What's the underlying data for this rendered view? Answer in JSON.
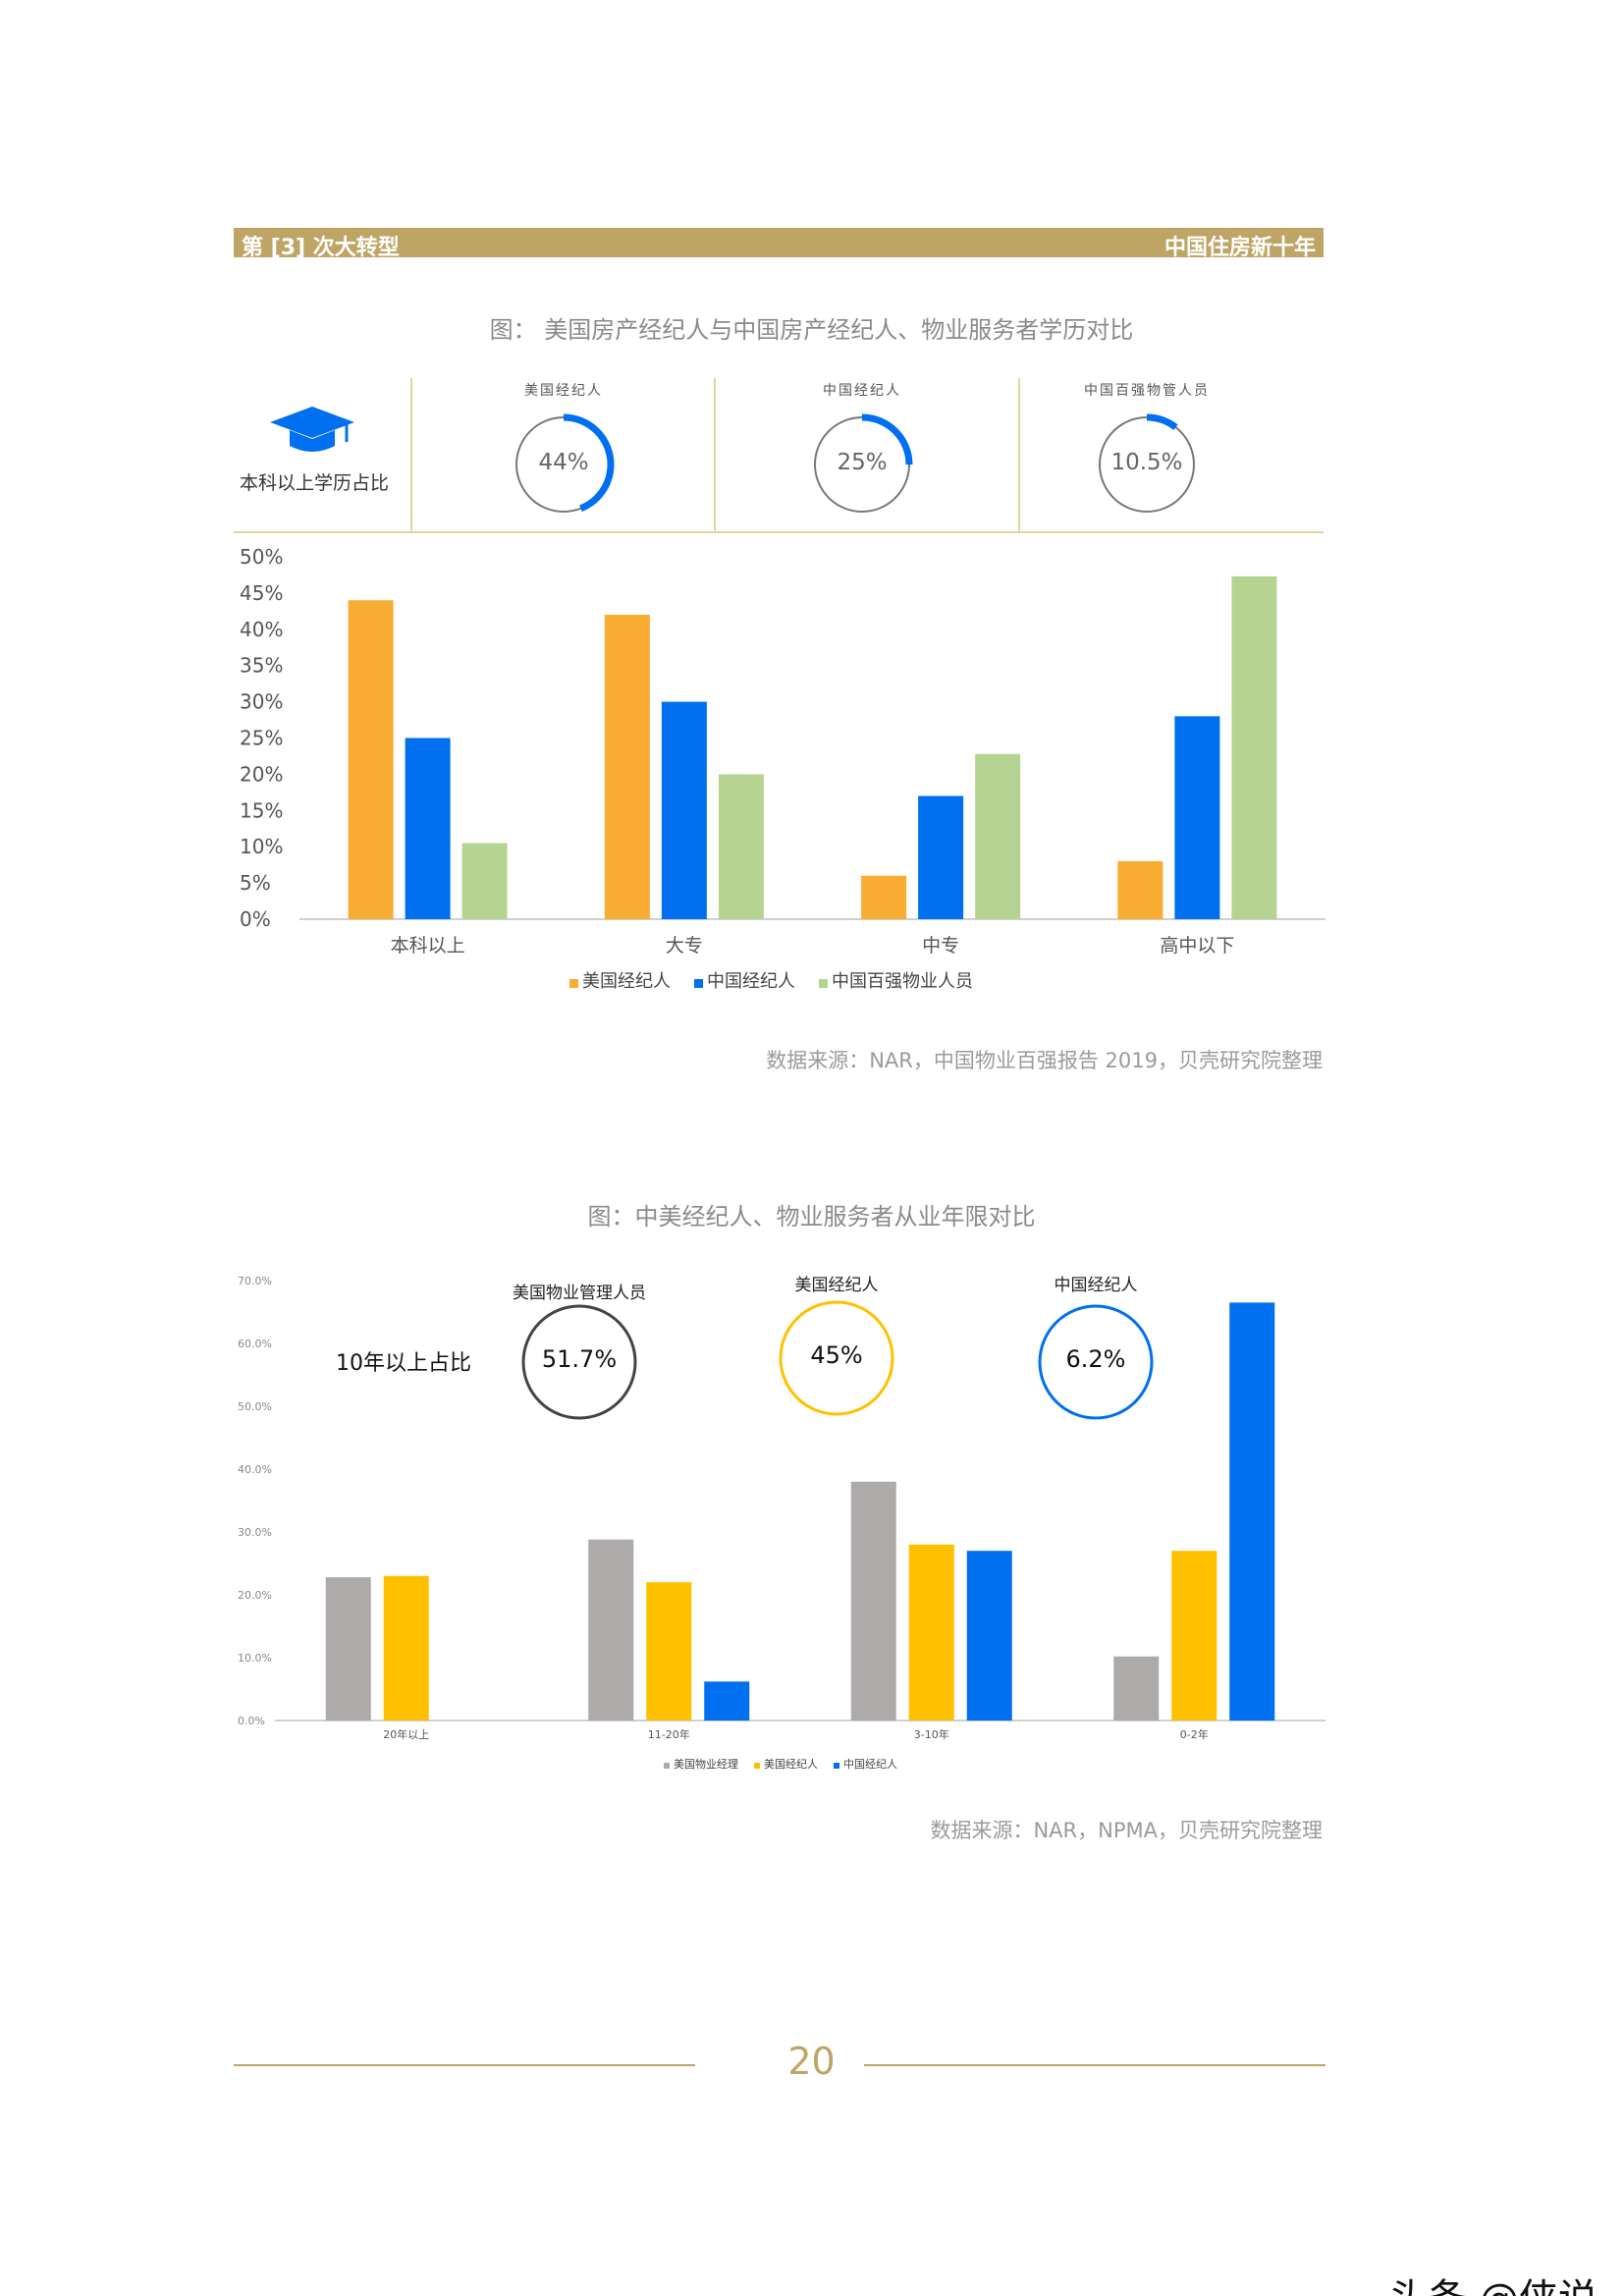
{
  "header": {
    "left": "第 [3] 次大转型",
    "right": "中国住房新十年"
  },
  "section1": {
    "title": "图： 美国房产经纪人与中国房产经纪人、物业服务者学历对比",
    "cap_label": "本科以上学历占比",
    "kpis": [
      {
        "label": "美国经纪人",
        "value": "44%",
        "fraction": 0.44
      },
      {
        "label": "中国经纪人",
        "value": "25%",
        "fraction": 0.25
      },
      {
        "label": "中国百强物管人员",
        "value": "10.5%",
        "fraction": 0.105
      }
    ],
    "source": "数据来源：NAR，中国物业百强报告 2019，贝壳研究院整理"
  },
  "section2": {
    "title": "图：中美经纪人、物业服务者从业年限对比",
    "big_label": "10年以上占比",
    "kpis": [
      {
        "label": "美国物业管理人员",
        "value": "51.7%",
        "color": "#444444"
      },
      {
        "label": "美国经纪人",
        "value": "45%",
        "color": "#ffc000"
      },
      {
        "label": "中国经纪人",
        "value": "6.2%",
        "color": "#0070f0"
      }
    ],
    "source": "数据来源：NAR，NPMA，贝壳研究院整理"
  },
  "chart_data": [
    {
      "type": "bar",
      "categories": [
        "本科以上",
        "大专",
        "中专",
        "高中以下"
      ],
      "series": [
        {
          "name": "美国经纪人",
          "values": [
            44,
            42,
            6,
            8
          ],
          "color": "#f9ac32"
        },
        {
          "name": "中国经纪人",
          "values": [
            25,
            30,
            17,
            28
          ],
          "color": "#0070f0"
        },
        {
          "name": "中国百强物业人员",
          "values": [
            10.5,
            20,
            22.8,
            47.3
          ],
          "color": "#b6d491"
        }
      ],
      "yticks": [
        "0%",
        "5%",
        "10%",
        "15%",
        "20%",
        "25%",
        "30%",
        "35%",
        "40%",
        "45%",
        "50%"
      ],
      "ylim": [
        0,
        50
      ],
      "legend_position": "bottom"
    },
    {
      "type": "bar",
      "categories": [
        "20年以上",
        "11-20年",
        "3-10年",
        "0-2年"
      ],
      "series": [
        {
          "name": "美国物业经理",
          "values": [
            22.8,
            28.8,
            38,
            10.2
          ],
          "color": "#aeaaaa"
        },
        {
          "name": "美国经纪人",
          "values": [
            23,
            22,
            28,
            27
          ],
          "color": "#ffc000"
        },
        {
          "name": "中国经纪人",
          "values": [
            0,
            6.2,
            27,
            66.5
          ],
          "color": "#0070f0"
        }
      ],
      "yticks": [
        "0.0%",
        "10.0%",
        "20.0%",
        "30.0%",
        "40.0%",
        "50.0%",
        "60.0%",
        "70.0%"
      ],
      "ylim": [
        0,
        70
      ],
      "legend_position": "bottom"
    }
  ],
  "page_number": "20",
  "watermark": "头条 @侠说"
}
